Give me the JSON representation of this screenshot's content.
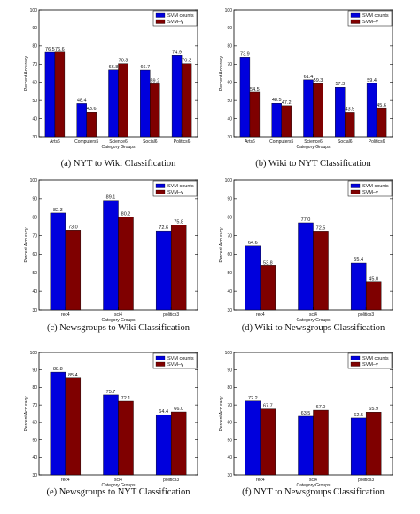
{
  "chart_data": [
    {
      "type": "bar",
      "caption": "(a)  NYT to Wiki Classification",
      "categories": [
        "Arts6",
        "Computers5",
        "Science6",
        "Social6",
        "Politics6"
      ],
      "series": [
        {
          "name": "SVM counts",
          "values": [
            76.5,
            48.4,
            66.8,
            66.7,
            74.9
          ]
        },
        {
          "name": "SVM–γ",
          "values": [
            76.6,
            43.6,
            70.3,
            59.2,
            70.3
          ]
        }
      ],
      "data_labels": [
        [
          "76.5",
          "48.4",
          "66.8",
          "66.7",
          "74.9"
        ],
        [
          "76.6",
          "43.6",
          "70.3",
          "59.2",
          "70.3"
        ]
      ],
      "ylim": [
        30,
        100
      ],
      "yticks": [
        "30",
        "40",
        "50",
        "60",
        "70",
        "80",
        "90",
        "100"
      ],
      "xlabel": "Category Groups",
      "ylabel": "Percent Accuracy",
      "legend_position": "top-right",
      "grid": false
    },
    {
      "type": "bar",
      "caption": "(b)  Wiki to NYT Classification",
      "categories": [
        "Arts6",
        "Computers5",
        "Science6",
        "Social6",
        "Politics6"
      ],
      "series": [
        {
          "name": "SVM counts",
          "values": [
            73.9,
            48.5,
            61.4,
            57.3,
            59.4
          ]
        },
        {
          "name": "SVM–γ",
          "values": [
            54.5,
            47.2,
            59.3,
            43.5,
            45.6
          ]
        }
      ],
      "data_labels": [
        [
          "73.9",
          "48.5",
          "61.4",
          "57.3",
          "59.4"
        ],
        [
          "54.5",
          "47.2",
          "59.3",
          "43.5",
          "45.6"
        ]
      ],
      "ylim": [
        30,
        100
      ],
      "yticks": [
        "30",
        "40",
        "50",
        "60",
        "70",
        "80",
        "90",
        "100"
      ],
      "xlabel": "Category Groups",
      "ylabel": "Percent Accuracy",
      "legend_position": "top-right",
      "grid": false
    },
    {
      "type": "bar",
      "caption": "(c)  Newsgroups to Wiki Classification",
      "categories": [
        "rec4",
        "sci4",
        "politics3"
      ],
      "series": [
        {
          "name": "SVM counts",
          "values": [
            82.3,
            89.1,
            72.6
          ]
        },
        {
          "name": "SVM–γ",
          "values": [
            73.0,
            80.2,
            75.8
          ]
        }
      ],
      "data_labels": [
        [
          "82.3",
          "89.1",
          "72.6"
        ],
        [
          "73.0",
          "80.2",
          "75.8"
        ]
      ],
      "ylim": [
        30,
        100
      ],
      "yticks": [
        "30",
        "40",
        "50",
        "60",
        "70",
        "80",
        "90",
        "100"
      ],
      "xlabel": "Category Groups",
      "ylabel": "Percent Accuracy",
      "legend_position": "top-right",
      "grid": false
    },
    {
      "type": "bar",
      "caption": "(d)  Wiki to Newsgroups Classification",
      "categories": [
        "rec4",
        "sci4",
        "politics3"
      ],
      "series": [
        {
          "name": "SVM counts",
          "values": [
            64.6,
            77.0,
            55.4
          ]
        },
        {
          "name": "SVM–γ",
          "values": [
            53.8,
            72.5,
            45.0
          ]
        }
      ],
      "data_labels": [
        [
          "64.6",
          "77.0",
          "55.4"
        ],
        [
          "53.8",
          "72.5",
          "45.0"
        ]
      ],
      "ylim": [
        30,
        100
      ],
      "yticks": [
        "30",
        "40",
        "50",
        "60",
        "70",
        "80",
        "90",
        "100"
      ],
      "xlabel": "Category Groups",
      "ylabel": "Percent Accuracy",
      "legend_position": "top-right",
      "grid": false
    },
    {
      "type": "bar",
      "caption": "(e)  Newsgroups to NYT Classification",
      "categories": [
        "rec4",
        "sci4",
        "politics3"
      ],
      "series": [
        {
          "name": "SVM counts",
          "values": [
            88.8,
            75.7,
            64.4
          ]
        },
        {
          "name": "SVM–γ",
          "values": [
            85.4,
            72.1,
            66.0
          ]
        }
      ],
      "data_labels": [
        [
          "88.8",
          "75.7",
          "64.4"
        ],
        [
          "85.4",
          "72.1",
          "66.0"
        ]
      ],
      "ylim": [
        30,
        100
      ],
      "yticks": [
        "30",
        "40",
        "50",
        "60",
        "70",
        "80",
        "90",
        "100"
      ],
      "xlabel": "Category Groups",
      "ylabel": "Percent Accuracy",
      "legend_position": "top-right",
      "grid": false
    },
    {
      "type": "bar",
      "caption": "(f)  NYT to Newsgroups Classification",
      "categories": [
        "rec4",
        "sci4",
        "politics3"
      ],
      "series": [
        {
          "name": "SVM counts",
          "values": [
            72.2,
            63.5,
            62.5
          ]
        },
        {
          "name": "SVM–γ",
          "values": [
            67.7,
            67.0,
            65.9
          ]
        }
      ],
      "data_labels": [
        [
          "72.2",
          "63.5",
          "62.5"
        ],
        [
          "67.7",
          "67.0",
          "65.9"
        ]
      ],
      "ylim": [
        30,
        100
      ],
      "yticks": [
        "30",
        "40",
        "50",
        "60",
        "70",
        "80",
        "90",
        "100"
      ],
      "xlabel": "Category Groups",
      "ylabel": "Percent Accuracy",
      "legend_position": "top-right",
      "grid": false
    }
  ],
  "colors": {
    "series_0": "#0000dd",
    "series_1": "#7f0000",
    "axes": "#000000"
  }
}
